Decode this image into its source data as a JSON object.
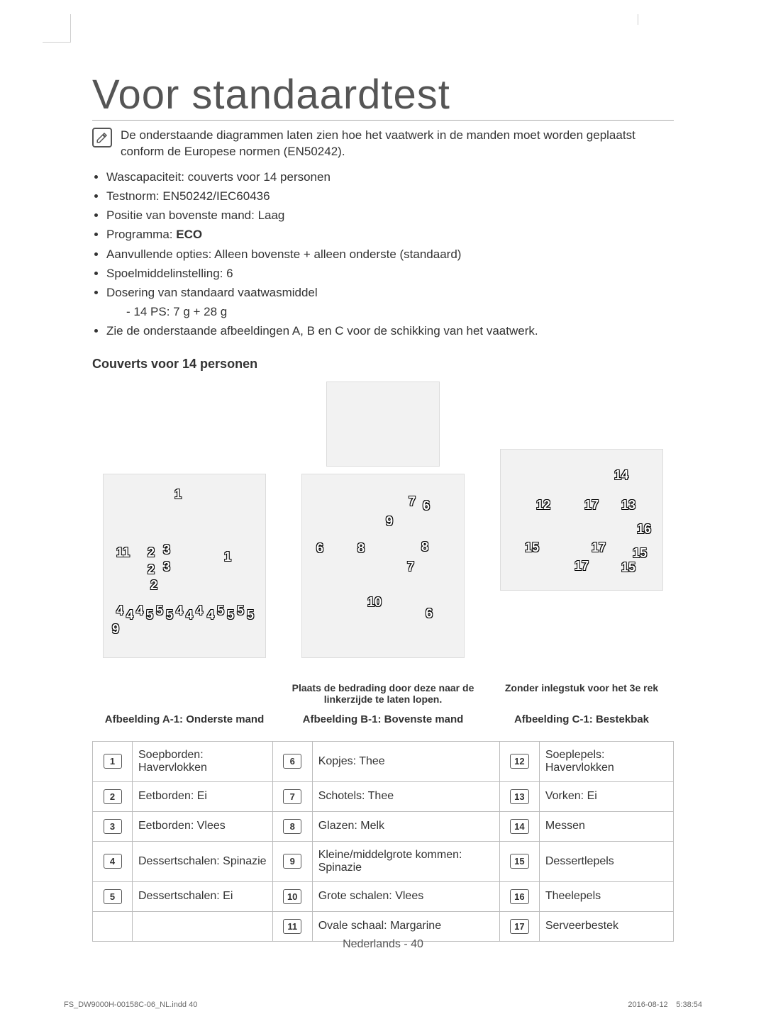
{
  "title": "Voor standaardtest",
  "note_icon": "note-icon",
  "intro": "De onderstaande diagrammen laten zien hoe het vaatwerk in de manden moet worden geplaatst conform de Europese normen (EN50242).",
  "bullets": {
    "b1": "Wascapaciteit: couverts voor 14 personen",
    "b2": "Testnorm: EN50242/IEC60436",
    "b3": "Positie van bovenste mand: Laag",
    "b4_pre": "Programma: ",
    "b4_bold": "ECO",
    "b5": "Aanvullende opties: Alleen bovenste + alleen onderste (standaard)",
    "b6": "Spoelmiddelinstelling: 6",
    "b7": "Dosering van standaard vaatwasmiddel",
    "b7_sub": "14 PS: 7 g + 28 g",
    "b8": "Zie de onderstaande afbeeldingen A, B en C voor de schikking van het vaatwerk."
  },
  "subhead": "Couverts voor 14 personen",
  "figs": {
    "a": {
      "hint_top": "",
      "caption": "Afbeelding A-1: Onderste mand"
    },
    "b": {
      "hint_top": "Plaats de bedrading door deze naar de linkerzijde te laten lopen.",
      "caption": "Afbeelding B-1: Bovenste mand"
    },
    "c": {
      "hint_top": "Zonder inlegstuk voor het 3e rek",
      "caption": "Afbeelding C-1: Bestekbak"
    }
  },
  "fig_a_labels": [
    "1",
    "11",
    "2",
    "3",
    "1",
    "2",
    "3",
    "2",
    "4",
    "4",
    "4",
    "5",
    "5",
    "5",
    "4",
    "4",
    "4",
    "4",
    "5",
    "5",
    "5",
    "5",
    "9"
  ],
  "fig_b_labels": [
    "7",
    "6",
    "9",
    "6",
    "8",
    "8",
    "7",
    "10",
    "6"
  ],
  "fig_c_labels": [
    "14",
    "12",
    "17",
    "13",
    "16",
    "15",
    "17",
    "17",
    "15",
    "15"
  ],
  "legend": {
    "rows": [
      {
        "n1": "1",
        "t1": "Soepborden: Havervlokken",
        "n2": "6",
        "t2": "Kopjes: Thee",
        "n3": "12",
        "t3": "Soeplepels: Havervlokken"
      },
      {
        "n1": "2",
        "t1": "Eetborden: Ei",
        "n2": "7",
        "t2": "Schotels: Thee",
        "n3": "13",
        "t3": "Vorken: Ei"
      },
      {
        "n1": "3",
        "t1": "Eetborden: Vlees",
        "n2": "8",
        "t2": "Glazen: Melk",
        "n3": "14",
        "t3": "Messen"
      },
      {
        "n1": "4",
        "t1": "Dessertschalen: Spinazie",
        "n2": "9",
        "t2": "Kleine/middelgrote kommen: Spinazie",
        "n3": "15",
        "t3": "Dessertlepels"
      },
      {
        "n1": "5",
        "t1": "Dessertschalen: Ei",
        "n2": "10",
        "t2": "Grote schalen: Vlees",
        "n3": "16",
        "t3": "Theelepels"
      },
      {
        "n1": "",
        "t1": "",
        "n2": "11",
        "t2": "Ovale schaal: Margarine",
        "n3": "17",
        "t3": "Serveerbestek"
      }
    ]
  },
  "footer": {
    "lang": "Nederlands - ",
    "page": "40",
    "file": "FS_DW9000H-00158C-06_NL.indd   40",
    "timestamp": "2016-08-12     5:38:54"
  },
  "colors": {
    "text": "#333333",
    "rule": "#aaaaaa",
    "table_border": "#bcbcbc",
    "fig_bg": "#f2f2f2"
  }
}
